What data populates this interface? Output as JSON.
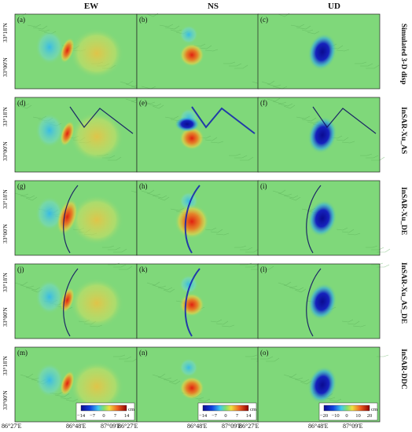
{
  "columns": [
    "EW",
    "NS",
    "UD"
  ],
  "rows": [
    "Simulated 3-D disp",
    "InSAR-Xu_AS",
    "InSAR-Xu_DE",
    "InSAR-Xu_AS_DE",
    "InSAR-DDC"
  ],
  "panel_letters": [
    "(a)",
    "(b)",
    "(c)",
    "(d)",
    "(e)",
    "(f)",
    "(g)",
    "(h)",
    "(i)",
    "(j)",
    "(k)",
    "(l)",
    "(m)",
    "(n)",
    "(o)"
  ],
  "lat_ticks": [
    "33°18'N",
    "33°00'N"
  ],
  "lon_ticks": [
    "86°27'E",
    "86°48'E",
    "87°09'E"
  ],
  "colorbars": [
    {
      "ticks": [
        "−14",
        "−7",
        "0",
        "7",
        "14"
      ],
      "unit": "cm"
    },
    {
      "ticks": [
        "−14",
        "−7",
        "0",
        "7",
        "14"
      ],
      "unit": "cm"
    },
    {
      "ticks": [
        "−20",
        "−10",
        "0",
        "10",
        "20"
      ],
      "unit": "cm"
    }
  ],
  "colors": {
    "background": "#7fd87a",
    "positive": "#e02010",
    "negative": "#1018c0"
  }
}
